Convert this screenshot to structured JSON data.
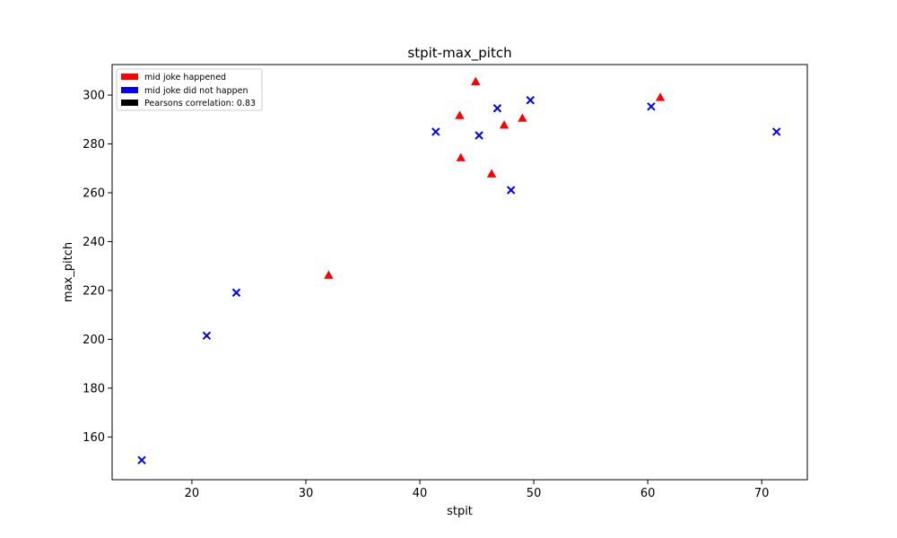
{
  "chart_data": {
    "type": "scatter",
    "title": "stpit-max_pitch",
    "xlabel": "stpit",
    "ylabel": "max_pitch",
    "xlim": [
      13,
      74
    ],
    "ylim": [
      142.5,
      312.5
    ],
    "xticks": [
      20,
      30,
      40,
      50,
      60,
      70
    ],
    "yticks": [
      160,
      180,
      200,
      220,
      240,
      260,
      280,
      300
    ],
    "grid": false,
    "legend_position": "top-left",
    "legend": [
      {
        "label": "mid joke happened",
        "color": "#ff0000"
      },
      {
        "label": "mid joke did not happen",
        "color": "#0000ff"
      },
      {
        "label": "Pearsons correlation: 0.83",
        "color": "#000000"
      }
    ],
    "series": [
      {
        "marker": "triangle",
        "color": "#ff0000",
        "points": [
          [
            32.0,
            226.3
          ],
          [
            43.5,
            291.7
          ],
          [
            43.6,
            274.4
          ],
          [
            44.9,
            305.6
          ],
          [
            46.3,
            267.8
          ],
          [
            47.4,
            287.8
          ],
          [
            49.0,
            290.6
          ],
          [
            61.1,
            299.1
          ]
        ]
      },
      {
        "marker": "x",
        "color": "#0000ff",
        "points": [
          [
            15.6,
            150.5
          ],
          [
            21.3,
            201.5
          ],
          [
            23.9,
            219.1
          ],
          [
            41.4,
            285.0
          ],
          [
            45.2,
            283.5
          ],
          [
            46.8,
            294.6
          ],
          [
            48.0,
            261.1
          ],
          [
            49.7,
            297.9
          ],
          [
            60.3,
            295.3
          ],
          [
            71.3,
            285.0
          ]
        ]
      }
    ]
  }
}
